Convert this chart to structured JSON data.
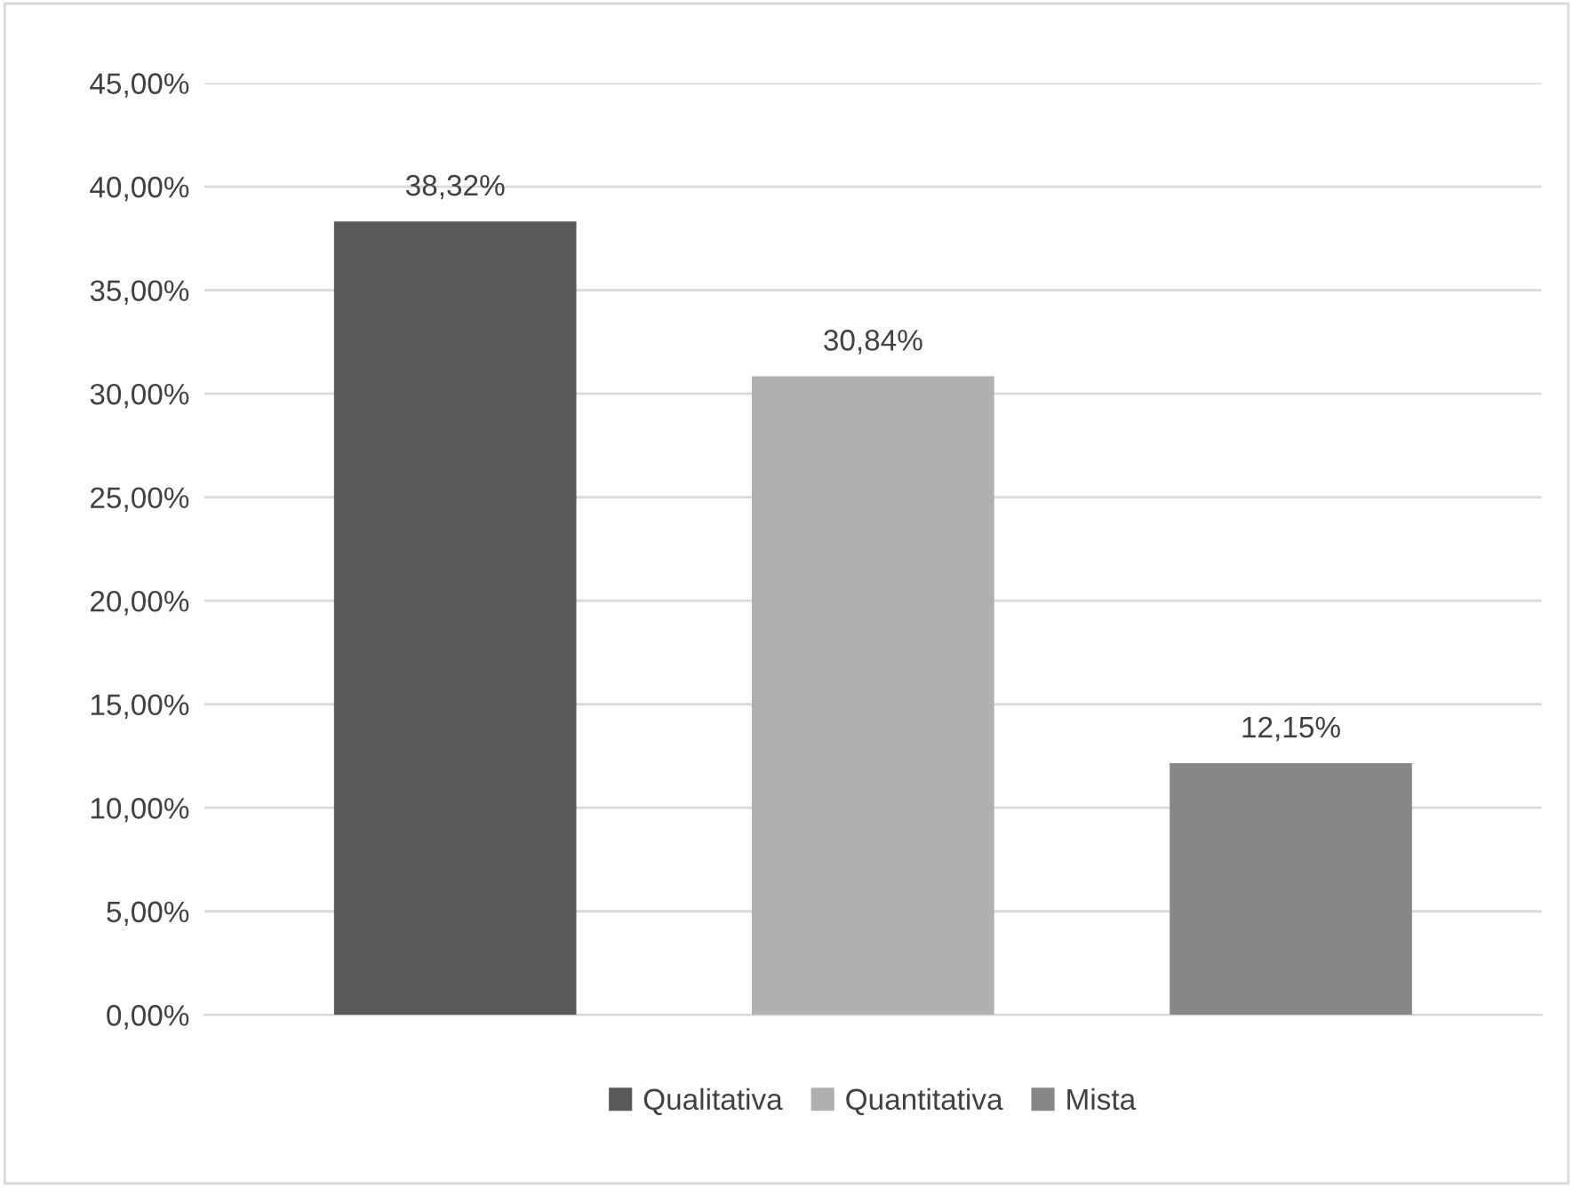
{
  "chart_data": {
    "type": "bar",
    "categories": [
      null,
      null,
      null
    ],
    "series": [
      {
        "name": "Qualitativa",
        "color": "#595959",
        "values": [
          38.32,
          null,
          null
        ],
        "value_labels": [
          "38,32%",
          null,
          null
        ]
      },
      {
        "name": "Quantitativa",
        "color": "#b0b0b0",
        "values": [
          null,
          30.84,
          null
        ],
        "value_labels": [
          null,
          "30,84%",
          null
        ]
      },
      {
        "name": "Mista",
        "color": "#878787",
        "values": [
          null,
          null,
          12.15
        ],
        "value_labels": [
          null,
          null,
          "12,15%"
        ]
      }
    ],
    "ylim": [
      0,
      45
    ],
    "yticks": [
      {
        "value": 0,
        "label": "0,00%"
      },
      {
        "value": 5,
        "label": "5,00%"
      },
      {
        "value": 10,
        "label": "10,00%"
      },
      {
        "value": 15,
        "label": "15,00%"
      },
      {
        "value": 20,
        "label": "20,00%"
      },
      {
        "value": 25,
        "label": "25,00%"
      },
      {
        "value": 30,
        "label": "30,00%"
      },
      {
        "value": 35,
        "label": "35,00%"
      },
      {
        "value": 40,
        "label": "40,00%"
      },
      {
        "value": 45,
        "label": "45,00%"
      }
    ],
    "grid": "y",
    "legend": "bottom"
  }
}
